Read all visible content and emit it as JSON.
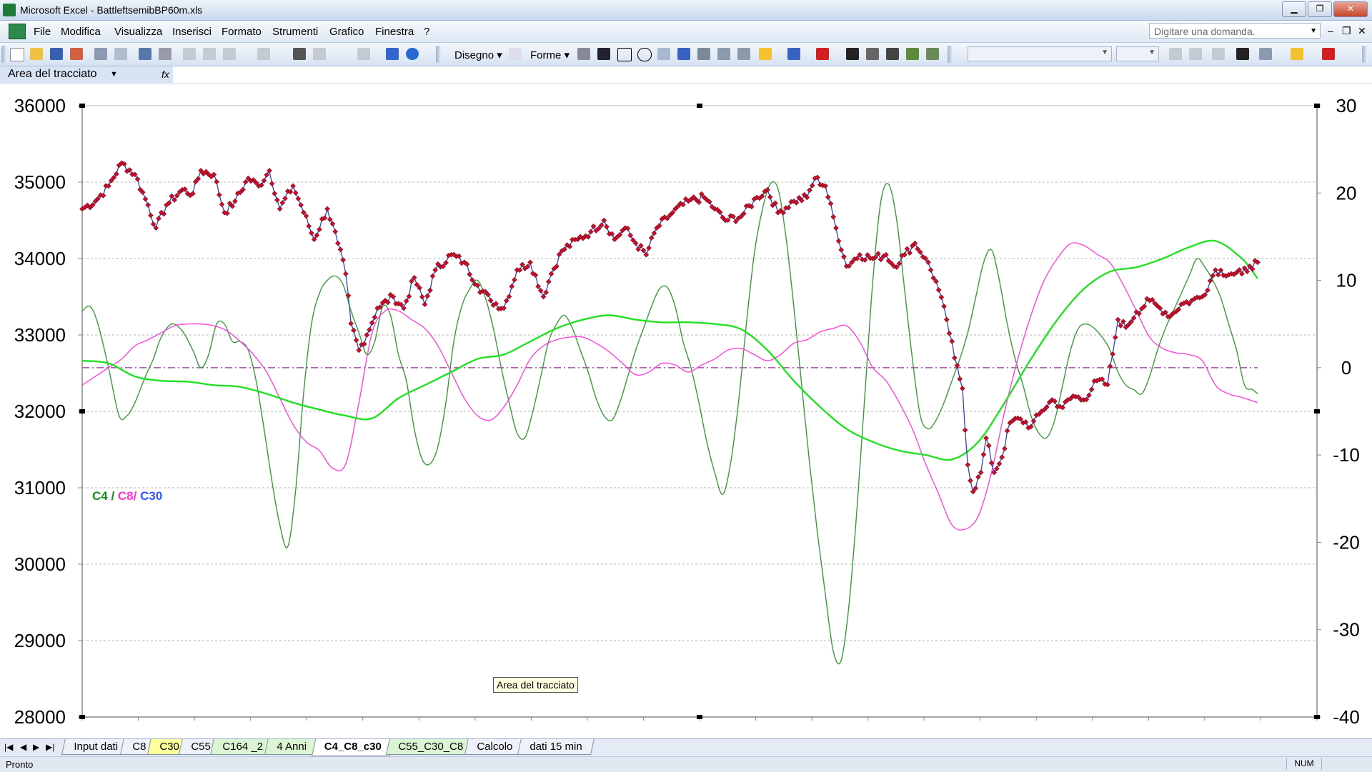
{
  "window": {
    "title": "Microsoft Excel - BattleftsemibBP60m.xls",
    "controls": [
      "▁",
      "❐",
      "✕"
    ]
  },
  "menu": {
    "items": [
      "File",
      "Modifica",
      "Visualizza",
      "Inserisci",
      "Formato",
      "Strumenti",
      "Grafico",
      "Finestra",
      "?"
    ],
    "ask_placeholder": "Digitare una domanda.",
    "mdi_controls": [
      "–",
      "❐",
      "✕"
    ]
  },
  "toolbar": {
    "drawing_label": "Disegno ▾",
    "shapes_label": "Forme ▾"
  },
  "namebox": {
    "value": "Area del tracciato",
    "fx": "fx"
  },
  "tooltip": "Area del tracciato",
  "sheet_tabs": {
    "nav": [
      "|◀",
      "◀",
      "▶",
      "▶|"
    ],
    "tabs": [
      {
        "label": "Input dati",
        "style": "plain"
      },
      {
        "label": "C8",
        "style": "plain"
      },
      {
        "label": "C30",
        "style": "yellow"
      },
      {
        "label": "C55",
        "style": "plain"
      },
      {
        "label": "C164 _2",
        "style": "green"
      },
      {
        "label": "4 Anni",
        "style": "green"
      },
      {
        "label": "C4_C8_c30",
        "style": "active"
      },
      {
        "label": "C55_C30_C8",
        "style": "green"
      },
      {
        "label": "Calcolo",
        "style": "plain"
      },
      {
        "label": "dati 15 min",
        "style": "plain"
      }
    ]
  },
  "status": {
    "text": "Pronto",
    "num": "NUM"
  },
  "chart_data": {
    "type": "line",
    "legend": {
      "parts": [
        {
          "text": "C4",
          "color": "#1a8a1a"
        },
        {
          "text": " / ",
          "color": "#1a8a1a"
        },
        {
          "text": "C8/",
          "color": "#ff33cc"
        },
        {
          "text": " C30",
          "color": "#3355ff"
        }
      ],
      "placement": "left-middle"
    },
    "y_left": {
      "min": 28000,
      "max": 36000,
      "ticks": [
        36000,
        35000,
        34000,
        33000,
        32000,
        31000,
        30000,
        29000,
        28000
      ]
    },
    "y_right": {
      "min": -40,
      "max": 30,
      "ticks": [
        30,
        20,
        10,
        0,
        -10,
        -20,
        -30,
        -40
      ]
    },
    "grid": "horizontal dotted",
    "zero_line": {
      "value": 0,
      "axis": "right",
      "color": "#a64ca6",
      "style": "dash-dot"
    },
    "colors": {
      "price": "#3344bb",
      "price_marker": "#c8102e",
      "c4": "#3a9a3a",
      "c8": "#ff44dd",
      "c30": "#22e022"
    },
    "price_series": {
      "name": "Price",
      "axis": "left",
      "anchors": [
        [
          0,
          34650
        ],
        [
          5,
          34750
        ],
        [
          10,
          34950
        ],
        [
          15,
          35250
        ],
        [
          20,
          35100
        ],
        [
          25,
          34700
        ],
        [
          28,
          34400
        ],
        [
          32,
          34700
        ],
        [
          38,
          34900
        ],
        [
          42,
          34850
        ],
        [
          45,
          35150
        ],
        [
          50,
          35100
        ],
        [
          54,
          34600
        ],
        [
          58,
          34750
        ],
        [
          63,
          35050
        ],
        [
          67,
          34950
        ],
        [
          71,
          35150
        ],
        [
          75,
          34650
        ],
        [
          80,
          34950
        ],
        [
          83,
          34700
        ],
        [
          88,
          34250
        ],
        [
          93,
          34650
        ],
        [
          97,
          34200
        ],
        [
          100,
          33800
        ],
        [
          102,
          33150
        ],
        [
          105,
          32800
        ],
        [
          108,
          33000
        ],
        [
          112,
          33350
        ],
        [
          118,
          33500
        ],
        [
          122,
          33350
        ],
        [
          126,
          33750
        ],
        [
          130,
          33400
        ],
        [
          134,
          33850
        ],
        [
          140,
          34050
        ],
        [
          145,
          33950
        ],
        [
          150,
          33650
        ],
        [
          155,
          33450
        ],
        [
          160,
          33350
        ],
        [
          165,
          33850
        ],
        [
          170,
          33950
        ],
        [
          175,
          33500
        ],
        [
          178,
          33800
        ],
        [
          182,
          34100
        ],
        [
          188,
          34250
        ],
        [
          193,
          34350
        ],
        [
          198,
          34500
        ],
        [
          202,
          34250
        ],
        [
          206,
          34400
        ],
        [
          210,
          34200
        ],
        [
          214,
          34050
        ],
        [
          218,
          34400
        ],
        [
          224,
          34600
        ],
        [
          230,
          34750
        ],
        [
          236,
          34800
        ],
        [
          240,
          34650
        ],
        [
          244,
          34500
        ],
        [
          250,
          34550
        ],
        [
          256,
          34800
        ],
        [
          260,
          34900
        ],
        [
          264,
          34600
        ],
        [
          270,
          34750
        ],
        [
          275,
          34800
        ],
        [
          278,
          35050
        ],
        [
          282,
          34950
        ],
        [
          286,
          34400
        ],
        [
          290,
          33900
        ],
        [
          295,
          34050
        ],
        [
          300,
          34000
        ],
        [
          305,
          34050
        ],
        [
          308,
          33900
        ],
        [
          312,
          34050
        ],
        [
          316,
          34200
        ],
        [
          320,
          34000
        ],
        [
          324,
          33700
        ],
        [
          328,
          33200
        ],
        [
          331,
          32700
        ],
        [
          334,
          32300
        ],
        [
          336,
          31300
        ],
        [
          338,
          30950
        ],
        [
          341,
          31200
        ],
        [
          343,
          31650
        ],
        [
          346,
          31200
        ],
        [
          349,
          31400
        ],
        [
          352,
          31850
        ],
        [
          356,
          31900
        ],
        [
          360,
          31800
        ],
        [
          364,
          32000
        ],
        [
          368,
          32150
        ],
        [
          372,
          32050
        ],
        [
          376,
          32200
        ],
        [
          380,
          32150
        ],
        [
          385,
          32400
        ],
        [
          389,
          32350
        ],
        [
          391,
          32750
        ],
        [
          393,
          33200
        ],
        [
          396,
          33100
        ],
        [
          400,
          33300
        ],
        [
          405,
          33450
        ],
        [
          409,
          33350
        ],
        [
          413,
          33250
        ],
        [
          417,
          33400
        ],
        [
          421,
          33450
        ],
        [
          425,
          33500
        ],
        [
          430,
          33850
        ],
        [
          436,
          33800
        ],
        [
          440,
          33800
        ],
        [
          443,
          33900
        ],
        [
          446,
          33950
        ]
      ],
      "length": 447
    },
    "series": [
      {
        "name": "C4",
        "axis": "right",
        "color": "#3a9a3a",
        "x": [
          0,
          3,
          6,
          10,
          14,
          17,
          20,
          24,
          27,
          30,
          34,
          38,
          42,
          45,
          48,
          51,
          54,
          57,
          60,
          63,
          66,
          69,
          72,
          75,
          78,
          81,
          84,
          87,
          90,
          93,
          96,
          99,
          102,
          105,
          108,
          111,
          114,
          117,
          120,
          123,
          126,
          129,
          132,
          135,
          138,
          141,
          144,
          147,
          150,
          153,
          156,
          159,
          162,
          165,
          168,
          171,
          174,
          177,
          180,
          183,
          186,
          189,
          192,
          195,
          198,
          201,
          204,
          207,
          210,
          213,
          216,
          219,
          222,
          225,
          228,
          231,
          234,
          237,
          240,
          243,
          246,
          249,
          252,
          255,
          258,
          261,
          264,
          267,
          270,
          273,
          276,
          279,
          282,
          285,
          288,
          291,
          294,
          297,
          300,
          303,
          306,
          309,
          312,
          315,
          318,
          321,
          324,
          327,
          330,
          333,
          336,
          339,
          342,
          345,
          348,
          351,
          354,
          357,
          360,
          363,
          366,
          369,
          372,
          375,
          378,
          381,
          384,
          387,
          390,
          393,
          396,
          399,
          402,
          405,
          408,
          411,
          414,
          417,
          420,
          423,
          426,
          429,
          432,
          435,
          438,
          441,
          444,
          446
        ],
        "values": [
          6.5,
          7,
          5,
          0,
          -5.5,
          -5.5,
          -4,
          -1,
          1,
          3.5,
          5,
          4.2,
          2,
          0,
          1.5,
          5,
          5,
          3,
          3,
          2,
          -1.5,
          -7,
          -13,
          -18,
          -20.5,
          -14,
          -3,
          5,
          8.5,
          10,
          10.5,
          9.5,
          6.5,
          4,
          1.5,
          3,
          7,
          6,
          1.5,
          -1.5,
          -7,
          -10.5,
          -11,
          -9,
          -4,
          3,
          7,
          9,
          10,
          8,
          4.5,
          0,
          -4,
          -7.5,
          -8,
          -5,
          -1,
          3,
          5,
          6,
          4.5,
          2,
          -0.5,
          -3.5,
          -5.5,
          -6,
          -4,
          -1,
          2,
          4.5,
          7,
          9,
          9.2,
          7,
          3,
          0,
          -4,
          -8.5,
          -12,
          -14.5,
          -11,
          -4,
          5,
          13,
          18,
          21,
          20.5,
          15,
          7,
          -2,
          -11,
          -19,
          -26,
          -32.5,
          -33.5,
          -27,
          -16,
          -3,
          10,
          19,
          21,
          17,
          9,
          1,
          -5.5,
          -7,
          -6,
          -4,
          -1.5,
          1,
          4,
          8,
          12,
          13.5,
          10,
          5,
          1,
          -2,
          -5.5,
          -7.5,
          -8,
          -6,
          -2,
          2,
          4.5,
          5,
          4.5,
          3.5,
          2,
          -0.5,
          -2,
          -2.5,
          -3,
          -1,
          2,
          4.5,
          6.5,
          8.5,
          10.5,
          12.5,
          11.5,
          10,
          8,
          5,
          2,
          -2,
          -2.5,
          -3
        ]
      },
      {
        "name": "C8",
        "axis": "right",
        "color": "#ff44dd",
        "x": [
          0,
          5,
          10,
          15,
          20,
          25,
          30,
          35,
          40,
          45,
          50,
          55,
          60,
          65,
          70,
          75,
          80,
          85,
          90,
          95,
          100,
          105,
          110,
          115,
          120,
          125,
          130,
          135,
          140,
          145,
          150,
          155,
          160,
          165,
          170,
          175,
          180,
          185,
          190,
          195,
          200,
          205,
          210,
          215,
          220,
          225,
          230,
          235,
          240,
          245,
          250,
          255,
          260,
          265,
          270,
          275,
          280,
          285,
          290,
          295,
          300,
          305,
          310,
          315,
          320,
          325,
          330,
          335,
          340,
          345,
          350,
          355,
          360,
          365,
          370,
          375,
          380,
          385,
          390,
          395,
          400,
          405,
          410,
          415,
          420,
          425,
          430,
          435,
          440,
          446
        ],
        "values": [
          -2,
          -1,
          0,
          1,
          2.5,
          3.2,
          4,
          4.8,
          5,
          5,
          4.8,
          4.2,
          3,
          1.5,
          -0.5,
          -3.5,
          -6.5,
          -8.5,
          -9.5,
          -11.5,
          -11,
          -4,
          4,
          6.5,
          6.5,
          5.5,
          4.5,
          2.5,
          -0.5,
          -3.5,
          -5.5,
          -6,
          -4.5,
          -2,
          1,
          2.5,
          3.2,
          3.5,
          3.5,
          2.8,
          1.8,
          0.5,
          -0.8,
          -0.5,
          0.5,
          0.3,
          -0.5,
          0.3,
          1,
          2,
          2.2,
          1.5,
          0.8,
          1.5,
          2.8,
          3.2,
          4.1,
          4.5,
          4.8,
          3,
          0,
          -1.5,
          -4,
          -7,
          -11,
          -14.5,
          -18,
          -18.5,
          -17,
          -12,
          -5,
          1,
          6,
          10,
          12.5,
          14.2,
          14,
          13,
          12,
          9.5,
          6.5,
          3.5,
          2.2,
          1.7,
          1.5,
          0.8,
          -2,
          -3,
          -3.4,
          -4
        ]
      },
      {
        "name": "C30",
        "axis": "right",
        "color": "#22e022",
        "x": [
          0,
          10,
          20,
          30,
          40,
          50,
          60,
          70,
          80,
          90,
          100,
          110,
          120,
          130,
          140,
          150,
          160,
          170,
          180,
          190,
          200,
          210,
          220,
          230,
          240,
          250,
          260,
          270,
          280,
          290,
          300,
          310,
          320,
          330,
          340,
          350,
          360,
          370,
          380,
          390,
          400,
          410,
          420,
          430,
          440,
          446
        ],
        "values": [
          0.8,
          0.5,
          -1,
          -1.5,
          -1.6,
          -2,
          -2.2,
          -3,
          -4,
          -4.8,
          -5.5,
          -5.8,
          -3.5,
          -2,
          -0.5,
          1,
          1.5,
          3,
          4.5,
          5.5,
          6,
          5.5,
          5.2,
          5.2,
          5,
          4.4,
          2,
          -1.5,
          -4.5,
          -7,
          -8.5,
          -9.5,
          -10,
          -10.5,
          -8.5,
          -4,
          1,
          5.5,
          9,
          11,
          11.5,
          12.5,
          13.8,
          14.5,
          12.5,
          10.2
        ]
      }
    ]
  }
}
